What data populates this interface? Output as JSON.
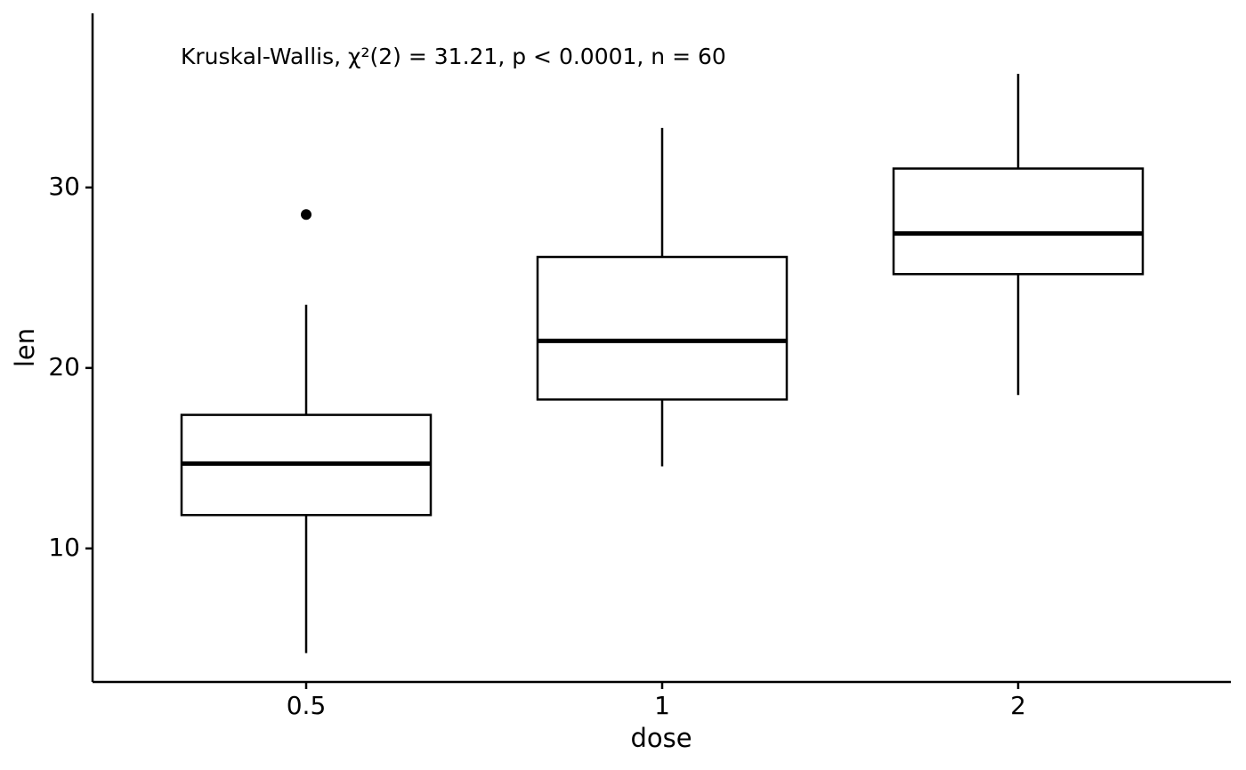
{
  "chart_data": {
    "type": "box",
    "annotation": "Kruskal-Wallis, χ²(2) = 31.21, p < 0.0001, n = 60",
    "x_label": "dose",
    "y_label": "len",
    "categories": [
      "0.5",
      "1",
      "2"
    ],
    "boxes": [
      {
        "min": 4.2,
        "q1": 11.85,
        "median": 14.7,
        "q3": 17.4,
        "max": 23.5,
        "outliers": [
          28.5
        ]
      },
      {
        "min": 14.55,
        "q1": 18.25,
        "median": 21.5,
        "q3": 26.15,
        "max": 33.3,
        "outliers": []
      },
      {
        "min": 18.5,
        "q1": 25.2,
        "median": 27.45,
        "q3": 31.05,
        "max": 36.3,
        "outliers": []
      }
    ],
    "color": "#000000",
    "ylim": [
      2.6,
      39.65
    ],
    "yticks": [
      10,
      20,
      30
    ]
  }
}
